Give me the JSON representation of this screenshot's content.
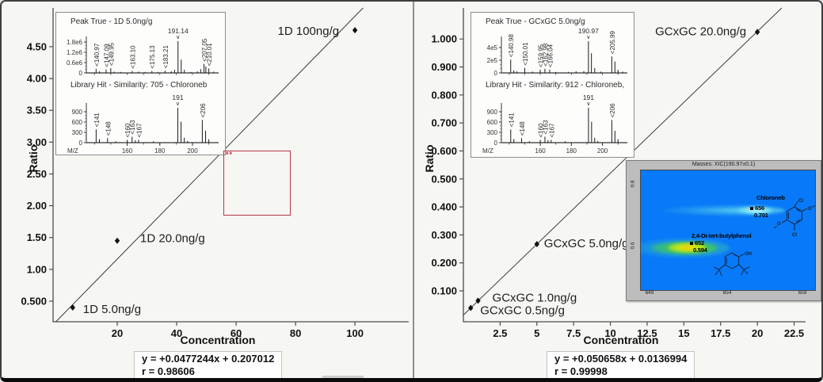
{
  "chart_data": [
    {
      "id": "calibration-1d",
      "type": "scatter",
      "xlabel": "Concentration",
      "ylabel": "Ratio",
      "points": [
        {
          "x": 5.0,
          "y": 0.4,
          "label": "1D 5.0ng/g",
          "anchor": "start",
          "label_offset": [
            13,
            2
          ]
        },
        {
          "x": 20.0,
          "y": 1.45,
          "label": "1D 20.0ng/g",
          "anchor": "start",
          "label_offset": [
            29,
            -3
          ]
        },
        {
          "x": 100.0,
          "y": 4.76,
          "label": "1D 100ng/g",
          "anchor": "end",
          "label_offset": [
            -20,
            1
          ]
        }
      ],
      "fit": {
        "slope": 0.0477244,
        "intercept": 0.207012,
        "r": 0.98606,
        "equation_label": "y = +0.0477244x + 0.207012",
        "r_label": "r = 0.98606"
      },
      "xticks": [
        20,
        40,
        60,
        80,
        100
      ],
      "xtick_labels": [
        "20",
        "40",
        "60",
        "80",
        "100"
      ],
      "yticks": [
        0.5,
        1.0,
        1.5,
        2.0,
        2.5,
        3.0,
        3.5,
        4.0,
        4.5
      ],
      "ytick_labels": [
        "0.500",
        "1.00",
        "1.50",
        "2.00",
        "2.50",
        "3.00",
        "3.50",
        "4.00",
        "4.50"
      ],
      "xlim": [
        0,
        118
      ],
      "ylim": [
        0.18,
        5.11
      ],
      "grid": false,
      "annotation": {
        "text": "**"
      }
    },
    {
      "id": "calibration-gcxgc",
      "type": "scatter",
      "xlabel": "Concentration",
      "ylabel": "Ratio",
      "points": [
        {
          "x": 0.5,
          "y": 0.039,
          "label": "GCxGC 0.5ng/g",
          "anchor": "start",
          "label_offset": [
            12,
            3
          ]
        },
        {
          "x": 1.0,
          "y": 0.065,
          "label": "GCxGC 1.0ng/g",
          "anchor": "start",
          "label_offset": [
            18,
            -4
          ]
        },
        {
          "x": 5.0,
          "y": 0.267,
          "label": "GCxGC 5.0ng/g",
          "anchor": "start",
          "label_offset": [
            9,
            -1
          ]
        },
        {
          "x": 20.0,
          "y": 1.025,
          "label": "GCxGC 20.0ng/g",
          "anchor": "end",
          "label_offset": [
            -14,
            -1
          ]
        }
      ],
      "fit": {
        "slope": 0.050658,
        "intercept": 0.0136994,
        "r": 0.99998,
        "equation_label": "y = +0.050658x + 0.0136994",
        "r_label": "r = 0.99998"
      },
      "xticks": [
        2.5,
        5,
        7.5,
        10,
        12.5,
        15,
        17.5,
        20,
        22.5
      ],
      "xtick_labels": [
        "2.5",
        "5",
        "7.5",
        "10",
        "12.5",
        "15",
        "17.5",
        "20",
        "22.5"
      ],
      "yticks": [
        0.1,
        0.2,
        0.3,
        0.4,
        0.5,
        0.6,
        0.7,
        0.8,
        0.9,
        1.0
      ],
      "ytick_labels": [
        "0.100",
        "0.200",
        "0.300",
        "0.400",
        "0.500",
        "0.600",
        "0.700",
        "0.800",
        "0.900",
        "1.000"
      ],
      "xlim": [
        0,
        23.3
      ],
      "ylim": [
        0,
        1.11
      ],
      "grid": false
    },
    {
      "id": "peak-true-1d",
      "type": "mass-spectrum",
      "title": "Peak True - 1D 5.0ng/g",
      "y_ticks": [
        "1.8e6",
        "1.2e6",
        "0.6e6",
        "0"
      ],
      "peaks": [
        [
          140.97,
          0.13,
          "140.97"
        ],
        [
          143,
          0.05
        ],
        [
          147.09,
          0.11,
          "147.09"
        ],
        [
          149.95,
          0.15,
          "149.95"
        ],
        [
          152,
          0.04
        ],
        [
          156,
          0.03
        ],
        [
          163.1,
          0.06,
          "163.10"
        ],
        [
          167,
          0.04
        ],
        [
          171,
          0.03
        ],
        [
          175.13,
          0.06,
          "175.13"
        ],
        [
          179,
          0.03
        ],
        [
          183.21,
          0.07,
          "183.21"
        ],
        [
          187,
          0.05
        ],
        [
          189,
          0.1
        ],
        [
          191.14,
          1.0,
          "191.14",
          1
        ],
        [
          193.1,
          0.42
        ],
        [
          195,
          0.1
        ],
        [
          199,
          0.03
        ],
        [
          203,
          0.05
        ],
        [
          205,
          0.12
        ],
        [
          207.05,
          0.28,
          "207.05"
        ],
        [
          208.2,
          0.2
        ],
        [
          210.01,
          0.14,
          "210.01"
        ],
        [
          213,
          0.04
        ]
      ]
    },
    {
      "id": "library-hit-1d",
      "type": "mass-spectrum",
      "title": "Library Hit - Similarity: 705 - Chloroneb",
      "y_ticks": [
        "900",
        "600",
        "300",
        "0"
      ],
      "peaks": [
        [
          141,
          0.38,
          "141"
        ],
        [
          143,
          0.1
        ],
        [
          148,
          0.13,
          "148"
        ],
        [
          153,
          0.04
        ],
        [
          160,
          0.08,
          "160"
        ],
        [
          163,
          0.17,
          "163"
        ],
        [
          165,
          0.07
        ],
        [
          167,
          0.08,
          "167"
        ],
        [
          176,
          0.04
        ],
        [
          191,
          1.0,
          "191",
          1
        ],
        [
          193,
          0.6
        ],
        [
          195,
          0.14
        ],
        [
          197,
          0.05
        ],
        [
          206,
          0.65,
          "206"
        ],
        [
          208,
          0.34
        ],
        [
          210,
          0.1
        ]
      ],
      "x_ticks": [
        160,
        180,
        200
      ],
      "xlabel": "M/Z"
    },
    {
      "id": "peak-true-gcxgc",
      "type": "mass-spectrum",
      "title": "Peak True - GCxGC 5.0ng/g",
      "y_ticks": [
        "4e5",
        "2e5",
        "0"
      ],
      "peaks": [
        [
          140.98,
          0.42,
          "140.98"
        ],
        [
          143,
          0.08
        ],
        [
          145,
          0.05
        ],
        [
          150.01,
          0.16,
          "150.01"
        ],
        [
          155,
          0.04
        ],
        [
          159.95,
          0.1,
          "159.95"
        ],
        [
          162.98,
          0.13,
          "162.98"
        ],
        [
          166.04,
          0.1,
          "166.04"
        ],
        [
          170,
          0.03
        ],
        [
          178,
          0.03
        ],
        [
          183,
          0.05
        ],
        [
          188,
          0.06
        ],
        [
          190.97,
          1.0,
          "190.97",
          1
        ],
        [
          192.9,
          0.62
        ],
        [
          195,
          0.15
        ],
        [
          199,
          0.04
        ],
        [
          205.99,
          0.52,
          "205.99"
        ],
        [
          208,
          0.36
        ],
        [
          210,
          0.1
        ],
        [
          213,
          0.04
        ]
      ]
    },
    {
      "id": "library-hit-gcxgc",
      "type": "mass-spectrum",
      "title": "Library Hit - Similarity: 912 - Chloroneb,",
      "y_ticks": [
        "900",
        "600",
        "300",
        "0"
      ],
      "peaks": [
        [
          141,
          0.38,
          "141"
        ],
        [
          143,
          0.1
        ],
        [
          148,
          0.13,
          "148"
        ],
        [
          153,
          0.04
        ],
        [
          160,
          0.08,
          "160"
        ],
        [
          163,
          0.17,
          "163"
        ],
        [
          165,
          0.07
        ],
        [
          167,
          0.08,
          "167"
        ],
        [
          176,
          0.04
        ],
        [
          191,
          1.0,
          "191",
          1
        ],
        [
          193,
          0.6
        ],
        [
          195,
          0.14
        ],
        [
          197,
          0.05
        ],
        [
          206,
          0.65,
          "206"
        ],
        [
          208,
          0.34
        ],
        [
          210,
          0.1
        ]
      ],
      "x_ticks": [
        160,
        180,
        200
      ],
      "xlabel": "M/Z"
    },
    {
      "id": "contour-xic",
      "type": "heatmap",
      "window_title": "Masses: XIC(190.97±0.1)",
      "xticks": [
        "649",
        "654",
        "659"
      ],
      "yticks": [
        "0.8",
        "0.6"
      ],
      "peaks": [
        {
          "name": "Chloroneb",
          "marker": "656",
          "value": "0.701"
        },
        {
          "name": "2,4-Di-tert-butylphenol",
          "marker": "652",
          "value": "0.594"
        }
      ]
    }
  ]
}
